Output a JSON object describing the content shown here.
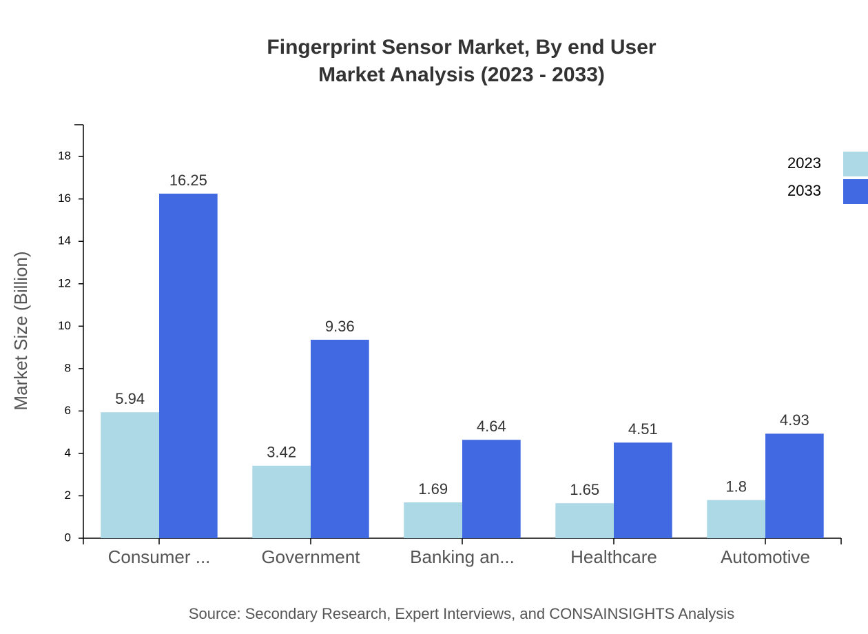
{
  "chart_data": {
    "type": "bar",
    "title": "Fingerprint Sensor Market, By end User",
    "subtitle": "Market Analysis (2023 - 2033)",
    "y_label": "Market Size (Billion)",
    "source": "Source: Secondary Research, Expert Interviews, and CONSAINSIGHTS Analysis",
    "categories": [
      "Consumer ...",
      "Government",
      "Banking an...",
      "Healthcare",
      "Automotive"
    ],
    "series": [
      {
        "name": "2023",
        "color": "#add8e6",
        "values": [
          5.94,
          3.42,
          1.69,
          1.65,
          1.8
        ]
      },
      {
        "name": "2033",
        "color": "#4169e1",
        "values": [
          16.25,
          9.36,
          4.64,
          4.51,
          4.93
        ]
      }
    ],
    "ylim": [
      0,
      19.5
    ],
    "yticks": [
      0,
      2,
      4,
      6,
      8,
      10,
      12,
      14,
      16,
      18
    ],
    "grid": false,
    "legend": "top-right"
  }
}
